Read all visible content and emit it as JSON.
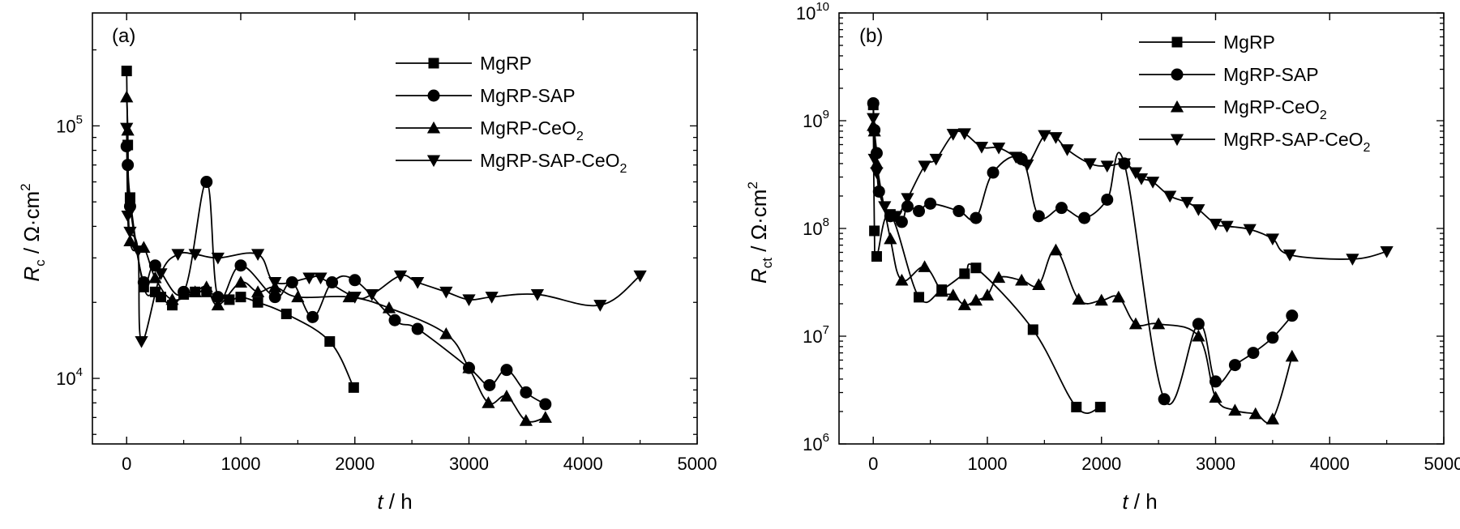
{
  "chart_data": [
    {
      "type": "line",
      "panel_label": "(a)",
      "ylabel": {
        "symbol": "R",
        "sub": "c",
        "unit": " / Ω·cm",
        "sup": "2"
      },
      "xlabel": {
        "symbol": "t",
        "unit": " / h"
      },
      "x_scale": "linear",
      "y_scale": "log",
      "xlim": [
        -300,
        5000
      ],
      "ylim": [
        5500,
        280000
      ],
      "x_ticks": [
        {
          "value": 0,
          "label": "0"
        },
        {
          "value": 1000,
          "label": "1000"
        },
        {
          "value": 2000,
          "label": "2000"
        },
        {
          "value": 3000,
          "label": "3000"
        },
        {
          "value": 4000,
          "label": "4000"
        },
        {
          "value": 5000,
          "label": "5000"
        }
      ],
      "y_ticks": [
        {
          "value": 10000,
          "base": "10",
          "exp": "4"
        },
        {
          "value": 100000,
          "base": "10",
          "exp": "5"
        }
      ],
      "legend_position": "top-right",
      "grid": false,
      "series": [
        {
          "name": "MgRP",
          "marker": "square",
          "points": [
            [
              0,
              165000
            ],
            [
              10,
              84000
            ],
            [
              30,
              52000
            ],
            [
              150,
              23000
            ],
            [
              250,
              22000
            ],
            [
              300,
              21000
            ],
            [
              400,
              19500
            ],
            [
              500,
              21500
            ],
            [
              600,
              22000
            ],
            [
              700,
              22000
            ],
            [
              900,
              20500
            ],
            [
              1000,
              21000
            ],
            [
              1150,
              20000
            ],
            [
              1400,
              18000
            ],
            [
              1780,
              14000
            ],
            [
              1990,
              9200
            ]
          ]
        },
        {
          "name": "MgRP-SAP",
          "marker": "circle",
          "points": [
            [
              0,
              83000
            ],
            [
              10,
              70000
            ],
            [
              30,
              48000
            ],
            [
              150,
              24000
            ],
            [
              250,
              28000
            ],
            [
              500,
              22000
            ],
            [
              700,
              60000
            ],
            [
              800,
              21000
            ],
            [
              1000,
              28000
            ],
            [
              1300,
              21000
            ],
            [
              1450,
              24000
            ],
            [
              1630,
              17500
            ],
            [
              1800,
              24000
            ],
            [
              2000,
              24500
            ],
            [
              2350,
              17000
            ],
            [
              2550,
              15700
            ],
            [
              3000,
              11000
            ],
            [
              3180,
              9400
            ],
            [
              3330,
              10800
            ],
            [
              3500,
              8800
            ],
            [
              3670,
              7900
            ]
          ]
        },
        {
          "name": "MgRP-CeO",
          "name_sub": "2",
          "marker": "triangle-up",
          "points": [
            [
              0,
              130000
            ],
            [
              10,
              96000
            ],
            [
              30,
              35000
            ],
            [
              150,
              33000
            ],
            [
              250,
              25000
            ],
            [
              400,
              20500
            ],
            [
              600,
              22000
            ],
            [
              700,
              23000
            ],
            [
              800,
              19500
            ],
            [
              1000,
              24000
            ],
            [
              1150,
              22000
            ],
            [
              1300,
              23000
            ],
            [
              1500,
              21000
            ],
            [
              1950,
              21000
            ],
            [
              2300,
              19000
            ],
            [
              2800,
              15000
            ],
            [
              3000,
              11000
            ],
            [
              3170,
              8000
            ],
            [
              3330,
              8500
            ],
            [
              3500,
              6800
            ],
            [
              3670,
              7000
            ]
          ]
        },
        {
          "name": "MgRP-SAP-CeO",
          "name_sub": "2",
          "marker": "triangle-down",
          "points": [
            [
              0,
              98000
            ],
            [
              10,
              44000
            ],
            [
              30,
              38000
            ],
            [
              100,
              32000
            ],
            [
              130,
              14000
            ],
            [
              300,
              26000
            ],
            [
              450,
              31000
            ],
            [
              600,
              31000
            ],
            [
              800,
              30000
            ],
            [
              1150,
              31000
            ],
            [
              1300,
              24000
            ],
            [
              1600,
              25000
            ],
            [
              1700,
              25000
            ],
            [
              2000,
              21000
            ],
            [
              2150,
              21500
            ],
            [
              2400,
              25500
            ],
            [
              2550,
              24000
            ],
            [
              2800,
              22000
            ],
            [
              3000,
              20500
            ],
            [
              3200,
              21000
            ],
            [
              3600,
              21500
            ],
            [
              4150,
              19500
            ],
            [
              4500,
              25500
            ]
          ]
        }
      ]
    },
    {
      "type": "line",
      "panel_label": "(b)",
      "ylabel": {
        "symbol": "R",
        "sub": "ct",
        "unit": " / Ω·cm",
        "sup": "2"
      },
      "xlabel": {
        "symbol": "t",
        "unit": " / h"
      },
      "x_scale": "linear",
      "y_scale": "log",
      "xlim": [
        -300,
        5000
      ],
      "ylim": [
        1000000,
        10000000000
      ],
      "x_ticks": [
        {
          "value": 0,
          "label": "0"
        },
        {
          "value": 1000,
          "label": "1000"
        },
        {
          "value": 2000,
          "label": "2000"
        },
        {
          "value": 3000,
          "label": "3000"
        },
        {
          "value": 4000,
          "label": "4000"
        },
        {
          "value": 5000,
          "label": "5000"
        }
      ],
      "y_ticks": [
        {
          "value": 1000000,
          "base": "10",
          "exp": "6"
        },
        {
          "value": 10000000,
          "base": "10",
          "exp": "7"
        },
        {
          "value": 100000000,
          "base": "10",
          "exp": "8"
        },
        {
          "value": 1000000000,
          "base": "10",
          "exp": "9"
        },
        {
          "value": 10000000000,
          "base": "10",
          "exp": "10"
        }
      ],
      "legend_position": "top-right",
      "grid": false,
      "series": [
        {
          "name": "MgRP",
          "marker": "square",
          "points": [
            [
              0,
              1400000000
            ],
            [
              10,
              95000000
            ],
            [
              30,
              55000000
            ],
            [
              150,
              135000000
            ],
            [
              400,
              23000000
            ],
            [
              600,
              27000000
            ],
            [
              800,
              38000000
            ],
            [
              900,
              43000000
            ],
            [
              1400,
              11500000
            ],
            [
              1780,
              2200000
            ],
            [
              1990,
              2200000
            ]
          ]
        },
        {
          "name": "MgRP-SAP",
          "marker": "circle",
          "points": [
            [
              0,
              1450000000
            ],
            [
              10,
              820000000
            ],
            [
              30,
              500000000
            ],
            [
              50,
              220000000
            ],
            [
              150,
              130000000
            ],
            [
              250,
              115000000
            ],
            [
              300,
              160000000
            ],
            [
              400,
              145000000
            ],
            [
              500,
              170000000
            ],
            [
              750,
              145000000
            ],
            [
              900,
              125000000
            ],
            [
              1050,
              330000000
            ],
            [
              1300,
              440000000
            ],
            [
              1450,
              130000000
            ],
            [
              1650,
              155000000
            ],
            [
              1850,
              125000000
            ],
            [
              2050,
              185000000
            ],
            [
              2200,
              400000000
            ],
            [
              2550,
              2600000
            ],
            [
              2850,
              13000000
            ],
            [
              3000,
              3800000
            ],
            [
              3170,
              5400000
            ],
            [
              3330,
              7000000
            ],
            [
              3500,
              9700000
            ],
            [
              3670,
              15500000
            ]
          ]
        },
        {
          "name": "MgRP-CeO",
          "name_sub": "2",
          "marker": "triangle-up",
          "points": [
            [
              0,
              900000000
            ],
            [
              10,
              800000000
            ],
            [
              30,
              400000000
            ],
            [
              150,
              80000000
            ],
            [
              250,
              33000000
            ],
            [
              450,
              44000000
            ],
            [
              600,
              26000000
            ],
            [
              700,
              24000000
            ],
            [
              800,
              19500000
            ],
            [
              900,
              21500000
            ],
            [
              1000,
              24000000
            ],
            [
              1100,
              35000000
            ],
            [
              1300,
              33000000
            ],
            [
              1450,
              30000000
            ],
            [
              1600,
              63000000
            ],
            [
              1800,
              22000000
            ],
            [
              2000,
              21500000
            ],
            [
              2150,
              23000000
            ],
            [
              2300,
              13000000
            ],
            [
              2500,
              13000000
            ],
            [
              2850,
              10000000
            ],
            [
              3000,
              2700000
            ],
            [
              3170,
              2050000
            ],
            [
              3350,
              1900000
            ],
            [
              3500,
              1700000
            ],
            [
              3670,
              6500000
            ]
          ]
        },
        {
          "name": "MgRP-SAP-CeO",
          "name_sub": "2",
          "marker": "triangle-down",
          "points": [
            [
              0,
              1050000000
            ],
            [
              10,
              440000000
            ],
            [
              30,
              330000000
            ],
            [
              100,
              160000000
            ],
            [
              200,
              130000000
            ],
            [
              300,
              190000000
            ],
            [
              450,
              380000000
            ],
            [
              550,
              440000000
            ],
            [
              700,
              750000000
            ],
            [
              800,
              760000000
            ],
            [
              950,
              570000000
            ],
            [
              1100,
              560000000
            ],
            [
              1250,
              460000000
            ],
            [
              1350,
              390000000
            ],
            [
              1500,
              730000000
            ],
            [
              1600,
              700000000
            ],
            [
              1700,
              540000000
            ],
            [
              1900,
              400000000
            ],
            [
              2050,
              380000000
            ],
            [
              2200,
              400000000
            ],
            [
              2300,
              330000000
            ],
            [
              2350,
              290000000
            ],
            [
              2450,
              270000000
            ],
            [
              2600,
              200000000
            ],
            [
              2750,
              175000000
            ],
            [
              2850,
              150000000
            ],
            [
              3000,
              110000000
            ],
            [
              3100,
              105000000
            ],
            [
              3300,
              98000000
            ],
            [
              3500,
              80000000
            ],
            [
              3650,
              57000000
            ],
            [
              4200,
              52000000
            ],
            [
              4500,
              61000000
            ]
          ]
        }
      ]
    }
  ]
}
